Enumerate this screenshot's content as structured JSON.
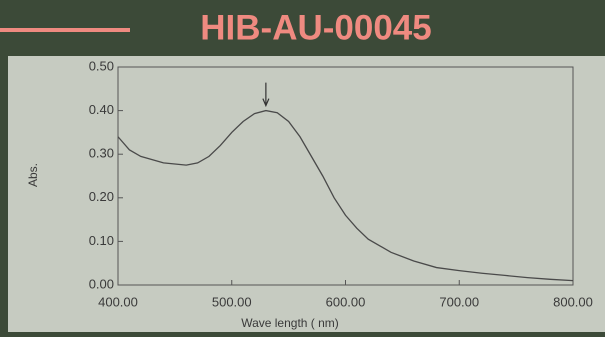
{
  "chart_data": {
    "type": "line",
    "title": "HIB-AU-00045",
    "x_label": "Wave length ( nm)",
    "y_label": "Abs.",
    "x": [
      400,
      410,
      420,
      440,
      460,
      470,
      480,
      490,
      500,
      510,
      520,
      530,
      540,
      550,
      560,
      570,
      580,
      590,
      600,
      610,
      620,
      640,
      660,
      680,
      700,
      720,
      740,
      760,
      780,
      800
    ],
    "series": [
      {
        "color": "#4a4a4a",
        "values": [
          0.34,
          0.31,
          0.295,
          0.28,
          0.275,
          0.28,
          0.295,
          0.32,
          0.35,
          0.375,
          0.393,
          0.4,
          0.395,
          0.375,
          0.34,
          0.295,
          0.25,
          0.2,
          0.16,
          0.13,
          0.105,
          0.075,
          0.055,
          0.04,
          0.033,
          0.027,
          0.022,
          0.017,
          0.013,
          0.01
        ]
      }
    ],
    "xlim": [
      400,
      800
    ],
    "xticks": [
      {
        "value": 400,
        "label": "400.00"
      },
      {
        "value": 500,
        "label": "500.00"
      },
      {
        "value": 600,
        "label": "600.00"
      },
      {
        "value": 700,
        "label": "700.00"
      },
      {
        "value": 800,
        "label": "800.00"
      }
    ],
    "ylim": [
      0,
      0.5
    ],
    "yticks": [
      {
        "value": 0,
        "label": "0.00"
      },
      {
        "value": 0.1,
        "label": "0.10"
      },
      {
        "value": 0.2,
        "label": "0.20"
      },
      {
        "value": 0.3,
        "label": "0.30"
      },
      {
        "value": 0.4,
        "label": "0.40"
      },
      {
        "value": 0.5,
        "label": "0.50"
      }
    ],
    "grid": false
  }
}
